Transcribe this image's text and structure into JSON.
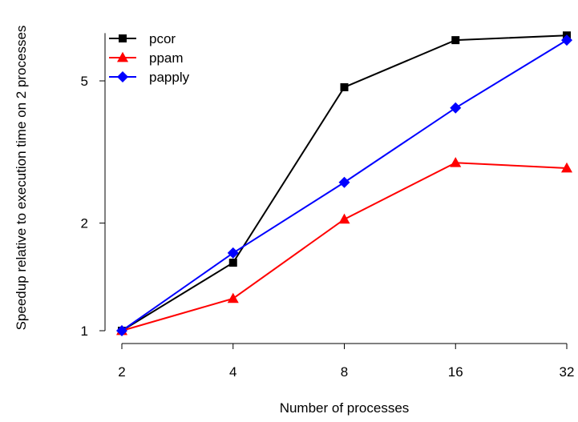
{
  "chart_data": {
    "type": "line",
    "xlabel": "Number of processes",
    "ylabel": "Speedup relative to execution time on 2 processes",
    "x": [
      2,
      4,
      8,
      16,
      32
    ],
    "x_scale": "log2",
    "y_scale": "log",
    "yticks": [
      1,
      2,
      5
    ],
    "ylim": [
      1,
      6.8
    ],
    "grid": false,
    "legend_position": "top-left",
    "series": [
      {
        "name": "pcor",
        "color": "#000000",
        "marker": "square",
        "values": [
          1.0,
          1.55,
          4.8,
          6.5,
          6.7
        ]
      },
      {
        "name": "ppam",
        "color": "#ff0000",
        "marker": "triangle",
        "values": [
          1.0,
          1.23,
          2.05,
          2.95,
          2.85
        ]
      },
      {
        "name": "papply",
        "color": "#0000ff",
        "marker": "diamond",
        "values": [
          1.0,
          1.65,
          2.6,
          4.2,
          6.5
        ]
      }
    ]
  }
}
